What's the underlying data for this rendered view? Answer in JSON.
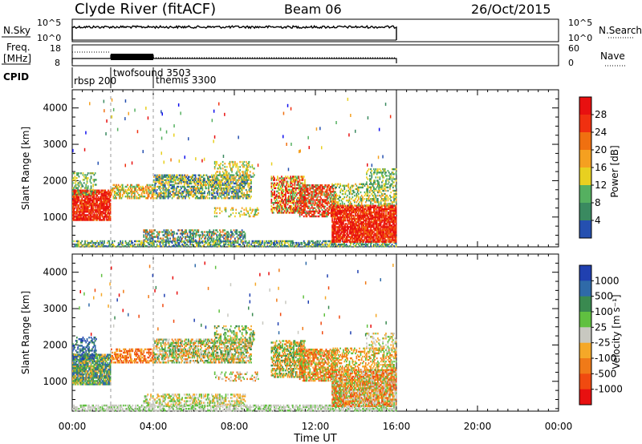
{
  "header": {
    "station": "Clyde River (fitACF)",
    "beam": "Beam 06",
    "date": "26/Oct/2015"
  },
  "colors": {
    "power_scale": [
      "#1010ee",
      "#2550b0",
      "#3a8a60",
      "#55b060",
      "#e8d020",
      "#f5a020",
      "#f07010",
      "#f03010",
      "#e81010"
    ],
    "velocity_scale": [
      "#e81010",
      "#f04a10",
      "#f07a18",
      "#f5a828",
      "#c8c8c0",
      "#60c040",
      "#3a8a50",
      "#2f6aa8",
      "#2040b0"
    ]
  },
  "chart_data": [
    {
      "type": "line",
      "name": "nsky-nsearch",
      "ylabel_left": "N.Sky",
      "ylabel_right": "N.Search",
      "yticks_left": [
        "10^5",
        "10^0"
      ],
      "yticks_right": [
        "10^5",
        "10^0"
      ],
      "xlim": [
        0,
        24
      ]
    },
    {
      "type": "line",
      "name": "freq-nave",
      "ylabel_left": "Freq.",
      "ylabel_left_unit": "[MHz]",
      "ylabel_right": "Nave",
      "yticks_left": [
        "18",
        "8"
      ],
      "yticks_right": [
        "60",
        "0"
      ],
      "xlim": [
        0,
        24
      ]
    },
    {
      "type": "table",
      "name": "cpid",
      "label": "CPID",
      "entries": [
        {
          "start": 0.0,
          "label": "rbsp 200"
        },
        {
          "start": 1.9,
          "label": "twofsound 3503"
        },
        {
          "start": 4.0,
          "label": "themis 3300"
        }
      ]
    },
    {
      "type": "heatmap",
      "name": "power",
      "ylabel": "Slant Range [km]",
      "ylim": [
        180,
        4500
      ],
      "yticks": [
        1000,
        2000,
        3000,
        4000
      ],
      "xlim": [
        0,
        24
      ],
      "colorbar_label": "Power [dB]",
      "colorbar_ticks": [
        "4",
        "8",
        "12",
        "16",
        "20",
        "24",
        "28"
      ]
    },
    {
      "type": "heatmap",
      "name": "velocity",
      "ylabel": "Slant Range [km]",
      "ylim": [
        180,
        4500
      ],
      "yticks": [
        1000,
        2000,
        3000,
        4000
      ],
      "xlim": [
        0,
        24
      ],
      "xticks": [
        "00:00",
        "04:00",
        "08:00",
        "12:00",
        "16:00",
        "20:00",
        "00:00"
      ],
      "xlabel": "Time UT",
      "colorbar_label": "Velocity [m s⁻¹]",
      "colorbar_ticks": [
        "1000",
        "500",
        "100",
        "25",
        "-25",
        "-100",
        "-500",
        "-1000"
      ]
    }
  ]
}
